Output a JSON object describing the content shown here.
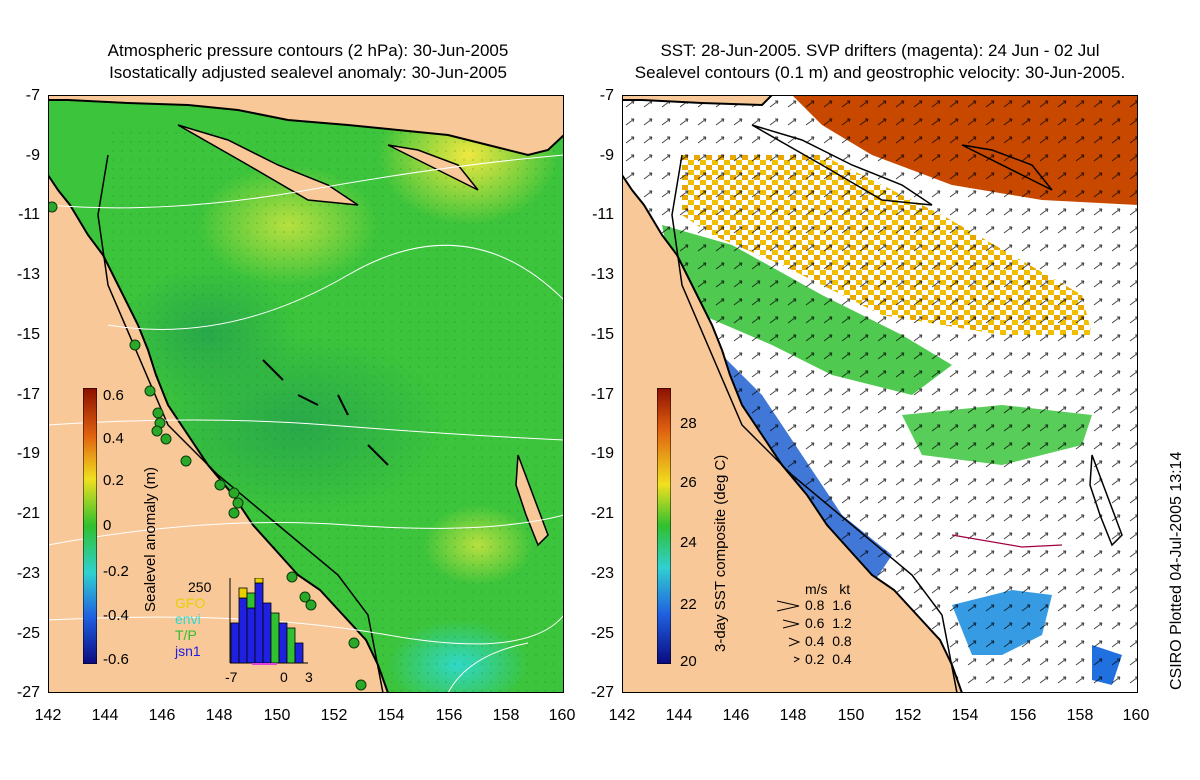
{
  "left_panel": {
    "title_line1": "Atmospheric pressure contours (2 hPa): 30-Jun-2005",
    "title_line2": "Isostatically adjusted sealevel anomaly: 30-Jun-2005",
    "colorbar_label": "Sealevel anomaly (m)",
    "colorbar_ticks": [
      "0.6",
      "0.4",
      "0.2",
      "0",
      "-0.2",
      "-0.4",
      "-0.6"
    ],
    "histogram": {
      "ymax_label": "250",
      "legend": [
        {
          "label": "GFO",
          "color": "#e8d000"
        },
        {
          "label": "envi",
          "color": "#30d8d0"
        },
        {
          "label": "T/P",
          "color": "#30c030"
        },
        {
          "label": "jsn1",
          "color": "#2020e0"
        }
      ],
      "xticks": [
        "-7",
        "0",
        "3"
      ]
    }
  },
  "right_panel": {
    "title_line1": "SST: 28-Jun-2005. SVP drifters (magenta): 24 Jun - 02 Jul",
    "title_line2": "Sealevel contours (0.1 m) and geostrophic velocity: 30-Jun-2005.",
    "colorbar_label": "3-day SST composite (deg C)",
    "colorbar_ticks": [
      "28",
      "26",
      "24",
      "22",
      "20"
    ],
    "velocity_legend": {
      "header": "m/s   kt",
      "rows": [
        "0.8  1.6",
        "0.6  1.2",
        "0.4  0.8",
        "0.2  0.4"
      ]
    }
  },
  "axes": {
    "y_ticks": [
      "-7",
      "-9",
      "-11",
      "-13",
      "-15",
      "-17",
      "-19",
      "-21",
      "-23",
      "-25",
      "-27"
    ],
    "x_ticks": [
      "142",
      "144",
      "146",
      "148",
      "150",
      "152",
      "154",
      "156",
      "158",
      "160"
    ],
    "lon_range": [
      142,
      160
    ],
    "lat_range": [
      -27,
      -7
    ]
  },
  "credit": "CSIRO Plotted 04-Jul-2005 13:14",
  "colors": {
    "land": "#f9c898",
    "ocean_base": "#3cc43c",
    "coast": "#000000"
  }
}
